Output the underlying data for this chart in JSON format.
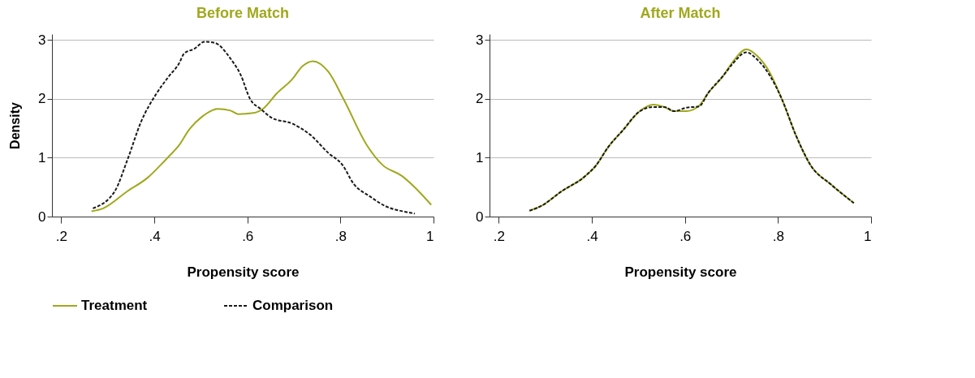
{
  "chart_data": [
    {
      "type": "line",
      "title": "Before Match",
      "xlabel": "Propensity score",
      "ylabel": "Density",
      "xlim": [
        0.18,
        1.0
      ],
      "ylim": [
        0,
        3.1
      ],
      "xticks": [
        {
          "value": 0.2,
          "label": ".2"
        },
        {
          "value": 0.4,
          "label": ".4"
        },
        {
          "value": 0.6,
          "label": ".6"
        },
        {
          "value": 0.8,
          "label": ".8"
        },
        1
      ],
      "yticks": [
        0,
        1,
        2,
        3
      ],
      "grid": "y",
      "legend": "bottom",
      "series": [
        {
          "name": "Treatment",
          "color": "#a0a81c",
          "line_style": "solid",
          "x": [
            0.265,
            0.29,
            0.342,
            0.387,
            0.414,
            0.431,
            0.453,
            0.475,
            0.503,
            0.536,
            0.564,
            0.58,
            0.613,
            0.635,
            0.663,
            0.696,
            0.719,
            0.741,
            0.774,
            0.807,
            0.857,
            0.89,
            0.932,
            0.973,
            0.995
          ],
          "values": [
            0.09,
            0.14,
            0.43,
            0.67,
            0.88,
            1.02,
            1.21,
            1.48,
            1.7,
            1.83,
            1.8,
            1.74,
            1.76,
            1.84,
            2.09,
            2.33,
            2.56,
            2.64,
            2.46,
            1.99,
            1.21,
            0.88,
            0.69,
            0.39,
            0.2
          ]
        },
        {
          "name": "Comparison",
          "color": "#1a1a1a",
          "line_style": "dashed",
          "x": [
            0.268,
            0.315,
            0.342,
            0.372,
            0.403,
            0.431,
            0.453,
            0.464,
            0.486,
            0.508,
            0.53,
            0.564,
            0.586,
            0.605,
            0.63,
            0.652,
            0.696,
            0.735,
            0.774,
            0.804,
            0.829,
            0.862,
            0.896,
            0.94,
            0.96
          ],
          "values": [
            0.14,
            0.43,
            0.96,
            1.62,
            2.07,
            2.38,
            2.6,
            2.77,
            2.85,
            2.97,
            2.95,
            2.68,
            2.4,
            2.01,
            1.82,
            1.68,
            1.58,
            1.39,
            1.08,
            0.88,
            0.55,
            0.35,
            0.18,
            0.08,
            0.05
          ]
        }
      ]
    },
    {
      "type": "line",
      "title": "After Match",
      "xlabel": "Propensity score",
      "xlim": [
        0.18,
        1.0
      ],
      "ylim": [
        0,
        3.1
      ],
      "xticks": [
        {
          "value": 0.2,
          "label": ".2"
        },
        {
          "value": 0.4,
          "label": ".4"
        },
        {
          "value": 0.6,
          "label": ".6"
        },
        {
          "value": 0.8,
          "label": ".8"
        },
        1
      ],
      "yticks": [
        0,
        1,
        2,
        3
      ],
      "grid": "y",
      "series": [
        {
          "name": "Treatment",
          "color": "#a0a81c",
          "line_style": "solid",
          "x": [
            0.266,
            0.291,
            0.335,
            0.383,
            0.409,
            0.435,
            0.467,
            0.503,
            0.532,
            0.556,
            0.577,
            0.603,
            0.63,
            0.65,
            0.682,
            0.703,
            0.732,
            0.755,
            0.782,
            0.808,
            0.839,
            0.871,
            0.913,
            0.963
          ],
          "values": [
            0.1,
            0.18,
            0.43,
            0.67,
            0.87,
            1.18,
            1.47,
            1.79,
            1.9,
            1.86,
            1.79,
            1.79,
            1.88,
            2.1,
            2.39,
            2.63,
            2.84,
            2.73,
            2.45,
            2.0,
            1.37,
            0.86,
            0.55,
            0.23
          ]
        },
        {
          "name": "Comparison",
          "color": "#1a1a1a",
          "line_style": "dashed",
          "x": [
            0.266,
            0.291,
            0.335,
            0.383,
            0.409,
            0.435,
            0.467,
            0.503,
            0.532,
            0.556,
            0.577,
            0.603,
            0.63,
            0.65,
            0.682,
            0.703,
            0.732,
            0.755,
            0.782,
            0.808,
            0.839,
            0.871,
            0.913,
            0.963
          ],
          "values": [
            0.1,
            0.18,
            0.43,
            0.67,
            0.87,
            1.18,
            1.47,
            1.79,
            1.86,
            1.86,
            1.79,
            1.85,
            1.87,
            2.1,
            2.39,
            2.6,
            2.79,
            2.67,
            2.4,
            2.0,
            1.37,
            0.86,
            0.55,
            0.23
          ]
        }
      ]
    }
  ]
}
